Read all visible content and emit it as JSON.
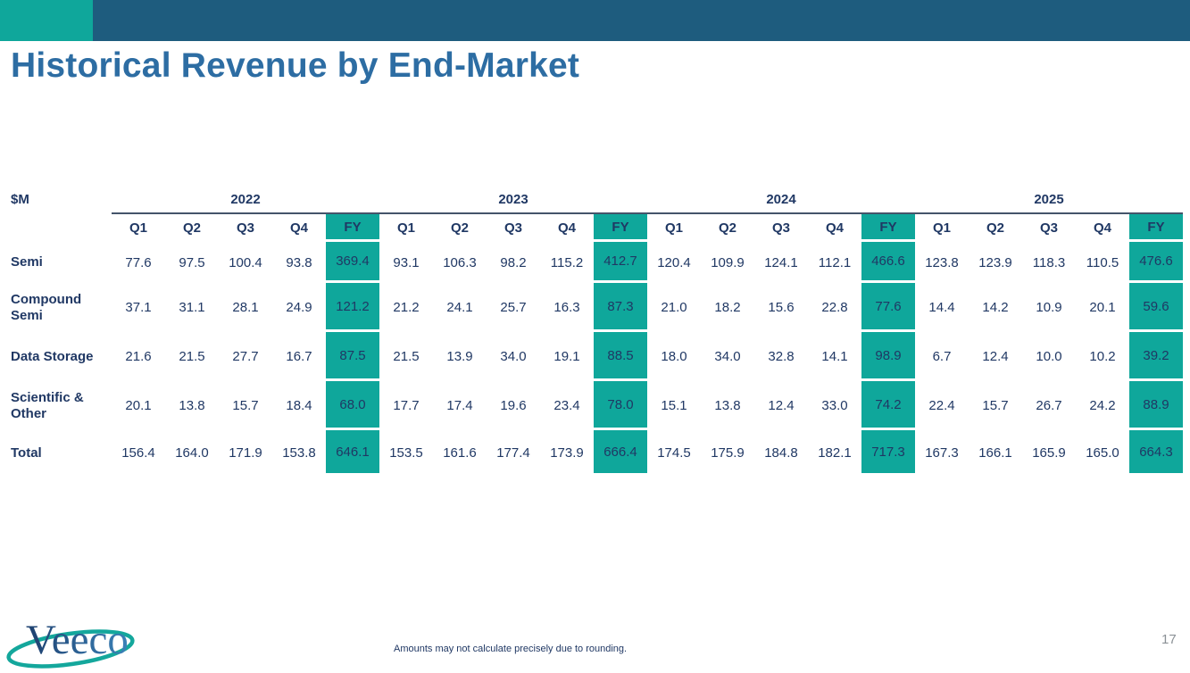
{
  "slide": {
    "title": "Historical Revenue by End-Market",
    "footnote": "Amounts may not calculate precisely due to rounding.",
    "page_number": "17",
    "logo_text": "Veeco"
  },
  "colors": {
    "accent_teal": "#0FA79B",
    "top_bar_blue": "#1E5C7E",
    "title_blue": "#2D6DA3",
    "table_text_navy": "#203864",
    "header_rule_gray": "#44546A",
    "page_number_gray": "#8B9196"
  },
  "chart_data": {
    "type": "table",
    "title": "Historical Revenue by End-Market",
    "unit_label": "$M",
    "years": [
      "2022",
      "2023",
      "2024",
      "2025"
    ],
    "quarter_headers": [
      "Q1",
      "Q2",
      "Q3",
      "Q4",
      "FY"
    ],
    "fy_columns_highlighted": true,
    "rows": [
      {
        "label": "Semi",
        "values": [
          "77.6",
          "97.5",
          "100.4",
          "93.8",
          "369.4",
          "93.1",
          "106.3",
          "98.2",
          "115.2",
          "412.7",
          "120.4",
          "109.9",
          "124.1",
          "112.1",
          "466.6",
          "123.8",
          "123.9",
          "118.3",
          "110.5",
          "476.6"
        ]
      },
      {
        "label": "Compound Semi",
        "values": [
          "37.1",
          "31.1",
          "28.1",
          "24.9",
          "121.2",
          "21.2",
          "24.1",
          "25.7",
          "16.3",
          "87.3",
          "21.0",
          "18.2",
          "15.6",
          "22.8",
          "77.6",
          "14.4",
          "14.2",
          "10.9",
          "20.1",
          "59.6"
        ]
      },
      {
        "label": "Data Storage",
        "values": [
          "21.6",
          "21.5",
          "27.7",
          "16.7",
          "87.5",
          "21.5",
          "13.9",
          "34.0",
          "19.1",
          "88.5",
          "18.0",
          "34.0",
          "32.8",
          "14.1",
          "98.9",
          "6.7",
          "12.4",
          "10.0",
          "10.2",
          "39.2"
        ]
      },
      {
        "label": "Scientific & Other",
        "values": [
          "20.1",
          "13.8",
          "15.7",
          "18.4",
          "68.0",
          "17.7",
          "17.4",
          "19.6",
          "23.4",
          "78.0",
          "15.1",
          "13.8",
          "12.4",
          "33.0",
          "74.2",
          "22.4",
          "15.7",
          "26.7",
          "24.2",
          "88.9"
        ]
      },
      {
        "label": "Total",
        "values": [
          "156.4",
          "164.0",
          "171.9",
          "153.8",
          "646.1",
          "153.5",
          "161.6",
          "177.4",
          "173.9",
          "666.4",
          "174.5",
          "175.9",
          "184.8",
          "182.1",
          "717.3",
          "167.3",
          "166.1",
          "165.9",
          "165.0",
          "664.3"
        ]
      }
    ]
  }
}
